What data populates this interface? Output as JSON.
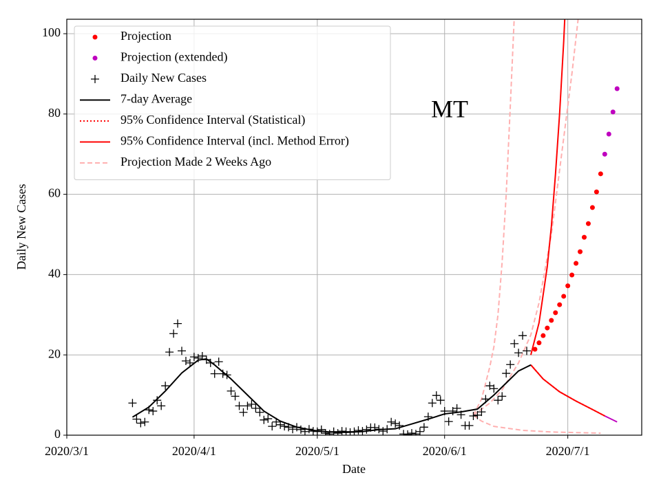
{
  "chart_data": {
    "type": "line",
    "title": "MT",
    "x_label": "Date",
    "y_label": "Daily New Cases",
    "xlim": [
      "2020-03-01",
      "2020-07-19"
    ],
    "ylim": [
      0,
      103.6
    ],
    "xticks": [
      {
        "value": "2020-03-01",
        "label": "2020/3/1"
      },
      {
        "value": "2020-04-01",
        "label": "2020/4/1"
      },
      {
        "value": "2020-05-01",
        "label": "2020/5/1"
      },
      {
        "value": "2020-06-01",
        "label": "2020/6/1"
      },
      {
        "value": "2020-07-01",
        "label": "2020/7/1"
      }
    ],
    "yticks": [
      0,
      20,
      40,
      60,
      80,
      100
    ],
    "grid": true,
    "legend": "upper left",
    "series": [
      {
        "name": "Projection",
        "color": "#ff0000",
        "style": "dots",
        "x": [
          "2020-06-23",
          "2020-06-24",
          "2020-06-25",
          "2020-06-26",
          "2020-06-27",
          "2020-06-28",
          "2020-06-29",
          "2020-06-30",
          "2020-07-01",
          "2020-07-02",
          "2020-07-03",
          "2020-07-04",
          "2020-07-05",
          "2020-07-06",
          "2020-07-07",
          "2020-07-08",
          "2020-07-09"
        ],
        "values": [
          21.4,
          23,
          24.8,
          26.7,
          28.6,
          30.5,
          32.5,
          34.6,
          37.2,
          39.9,
          42.8,
          45.7,
          49.3,
          52.7,
          56.7,
          60.6,
          65.1
        ]
      },
      {
        "name": "Projection (extended)",
        "color": "#bf00bf",
        "style": "dots",
        "x": [
          "2020-07-10",
          "2020-07-11",
          "2020-07-12",
          "2020-07-13"
        ],
        "values": [
          70,
          75,
          80.5,
          86.3
        ]
      },
      {
        "name": "Daily New Cases",
        "color": "#000000",
        "style": "cross",
        "x": [
          "2020-03-17",
          "2020-03-18",
          "2020-03-19",
          "2020-03-20",
          "2020-03-21",
          "2020-03-22",
          "2020-03-23",
          "2020-03-24",
          "2020-03-25",
          "2020-03-26",
          "2020-03-27",
          "2020-03-28",
          "2020-03-29",
          "2020-03-30",
          "2020-03-31",
          "2020-04-01",
          "2020-04-02",
          "2020-04-03",
          "2020-04-04",
          "2020-04-05",
          "2020-04-06",
          "2020-04-07",
          "2020-04-08",
          "2020-04-09",
          "2020-04-10",
          "2020-04-11",
          "2020-04-12",
          "2020-04-13",
          "2020-04-14",
          "2020-04-15",
          "2020-04-16",
          "2020-04-17",
          "2020-04-18",
          "2020-04-19",
          "2020-04-20",
          "2020-04-21",
          "2020-04-22",
          "2020-04-23",
          "2020-04-24",
          "2020-04-25",
          "2020-04-26",
          "2020-04-27",
          "2020-04-28",
          "2020-04-29",
          "2020-04-30",
          "2020-05-01",
          "2020-05-02",
          "2020-05-03",
          "2020-05-04",
          "2020-05-05",
          "2020-05-06",
          "2020-05-07",
          "2020-05-08",
          "2020-05-09",
          "2020-05-10",
          "2020-05-11",
          "2020-05-12",
          "2020-05-13",
          "2020-05-14",
          "2020-05-15",
          "2020-05-16",
          "2020-05-17",
          "2020-05-18",
          "2020-05-19",
          "2020-05-20",
          "2020-05-21",
          "2020-05-22",
          "2020-05-23",
          "2020-05-24",
          "2020-05-25",
          "2020-05-26",
          "2020-05-27",
          "2020-05-28",
          "2020-05-29",
          "2020-05-30",
          "2020-05-31",
          "2020-06-01",
          "2020-06-02",
          "2020-06-03",
          "2020-06-04",
          "2020-06-05",
          "2020-06-06",
          "2020-06-07",
          "2020-06-08",
          "2020-06-09",
          "2020-06-10",
          "2020-06-11",
          "2020-06-12",
          "2020-06-13",
          "2020-06-14",
          "2020-06-15",
          "2020-06-16",
          "2020-06-17",
          "2020-06-18",
          "2020-06-19",
          "2020-06-20",
          "2020-06-21"
        ],
        "values": [
          8,
          4,
          3,
          3.3,
          6.3,
          6,
          8.7,
          7.3,
          12.3,
          20.7,
          25.3,
          27.8,
          21,
          18.5,
          18,
          19.5,
          19.2,
          19.7,
          18.8,
          18,
          15.3,
          18.3,
          15.3,
          15,
          11,
          9.7,
          7.3,
          5.7,
          7.3,
          7.7,
          6.7,
          5.7,
          3.8,
          4.1,
          2.2,
          3.3,
          2.6,
          2.2,
          2,
          1.5,
          2,
          1.4,
          0.9,
          1.5,
          1,
          0.9,
          1.4,
          0.5,
          0.3,
          0.9,
          0.5,
          1,
          0.9,
          0.7,
          0.9,
          1.2,
          1,
          1.4,
          1.9,
          1.9,
          1.5,
          1,
          1.5,
          3.3,
          2.9,
          2.4,
          0.3,
          0.2,
          0.5,
          0.3,
          0.9,
          2,
          4.6,
          8,
          9.9,
          8.7,
          6,
          3.4,
          6,
          6.7,
          5.1,
          2.4,
          2.4,
          4.8,
          5,
          5.8,
          9,
          12.3,
          11.6,
          8.7,
          9.7,
          15.4,
          17.6,
          22.8,
          20.5,
          24.8,
          21
        ]
      },
      {
        "name": "7-day Average",
        "color": "#000000",
        "style": "line",
        "x": [
          "2020-03-17",
          "2020-03-21",
          "2020-03-25",
          "2020-03-29",
          "2020-04-02",
          "2020-04-04",
          "2020-04-06",
          "2020-04-10",
          "2020-04-14",
          "2020-04-18",
          "2020-04-22",
          "2020-04-26",
          "2020-04-30",
          "2020-05-04",
          "2020-05-08",
          "2020-05-12",
          "2020-05-16",
          "2020-05-20",
          "2020-05-24",
          "2020-05-28",
          "2020-06-01",
          "2020-06-05",
          "2020-06-09",
          "2020-06-13",
          "2020-06-17",
          "2020-06-19",
          "2020-06-22"
        ],
        "values": [
          4.5,
          7,
          11,
          15.5,
          18.7,
          19,
          17.5,
          14,
          10,
          6,
          3.5,
          2,
          1.2,
          0.8,
          0.7,
          0.9,
          1.4,
          1.6,
          2.8,
          4,
          5.3,
          5.8,
          6.5,
          10,
          14,
          16,
          17.5
        ]
      },
      {
        "name": "95% Confidence Interval (Statistical)",
        "color": "#ff0000",
        "style": "dotted",
        "x": [
          "2020-06-22",
          "2020-06-25",
          "2020-06-29",
          "2020-07-03",
          "2020-07-07",
          "2020-07-10"
        ],
        "values": [
          17.5,
          14,
          10.8,
          8.5,
          6.4,
          4.8
        ]
      },
      {
        "name": "95% Confidence Interval (incl. Method Error)",
        "color": "#ff0000",
        "style": "line",
        "x": [
          "2020-06-22",
          "2020-06-24",
          "2020-06-26",
          "2020-06-27",
          "2020-06-28",
          "2020-06-29",
          "2020-06-30",
          "2020-07-01"
        ],
        "values": [
          20,
          28,
          42,
          52,
          65,
          80,
          98,
          120
        ]
      },
      {
        "color": "#ff0000",
        "style": "line",
        "x": [
          "2020-06-22",
          "2020-06-25",
          "2020-06-29",
          "2020-07-03",
          "2020-07-07",
          "2020-07-10"
        ],
        "values": [
          17.5,
          14,
          10.8,
          8.5,
          6.4,
          4.8
        ]
      },
      {
        "color": "#bf00bf",
        "style": "line",
        "x": [
          "2020-07-10",
          "2020-07-13"
        ],
        "values": [
          4.8,
          3.3
        ]
      },
      {
        "name": "Projection Made 2 Weeks Ago",
        "color": "#ffb0b0",
        "style": "dashed",
        "x": [
          "2020-06-08",
          "2020-06-10",
          "2020-06-12",
          "2020-06-13",
          "2020-06-14",
          "2020-06-15",
          "2020-06-16",
          "2020-06-17",
          "2020-06-18"
        ],
        "values": [
          5,
          9,
          17,
          22,
          30,
          43,
          60,
          82,
          105
        ]
      },
      {
        "color": "#ffb0b0",
        "style": "dashed",
        "x": [
          "2020-06-08",
          "2020-06-12",
          "2020-06-15",
          "2020-06-19",
          "2020-06-22",
          "2020-06-24",
          "2020-06-27",
          "2020-06-29",
          "2020-07-02",
          "2020-07-04"
        ],
        "values": [
          5,
          8,
          11.3,
          18,
          25,
          33,
          50,
          66,
          90,
          108
        ]
      },
      {
        "color": "#ffb0b0",
        "style": "dashed",
        "x": [
          "2020-06-08",
          "2020-06-10",
          "2020-06-13",
          "2020-06-20",
          "2020-06-27",
          "2020-07-09"
        ],
        "values": [
          5,
          3.5,
          2.2,
          1.2,
          0.8,
          0.5
        ]
      }
    ]
  }
}
